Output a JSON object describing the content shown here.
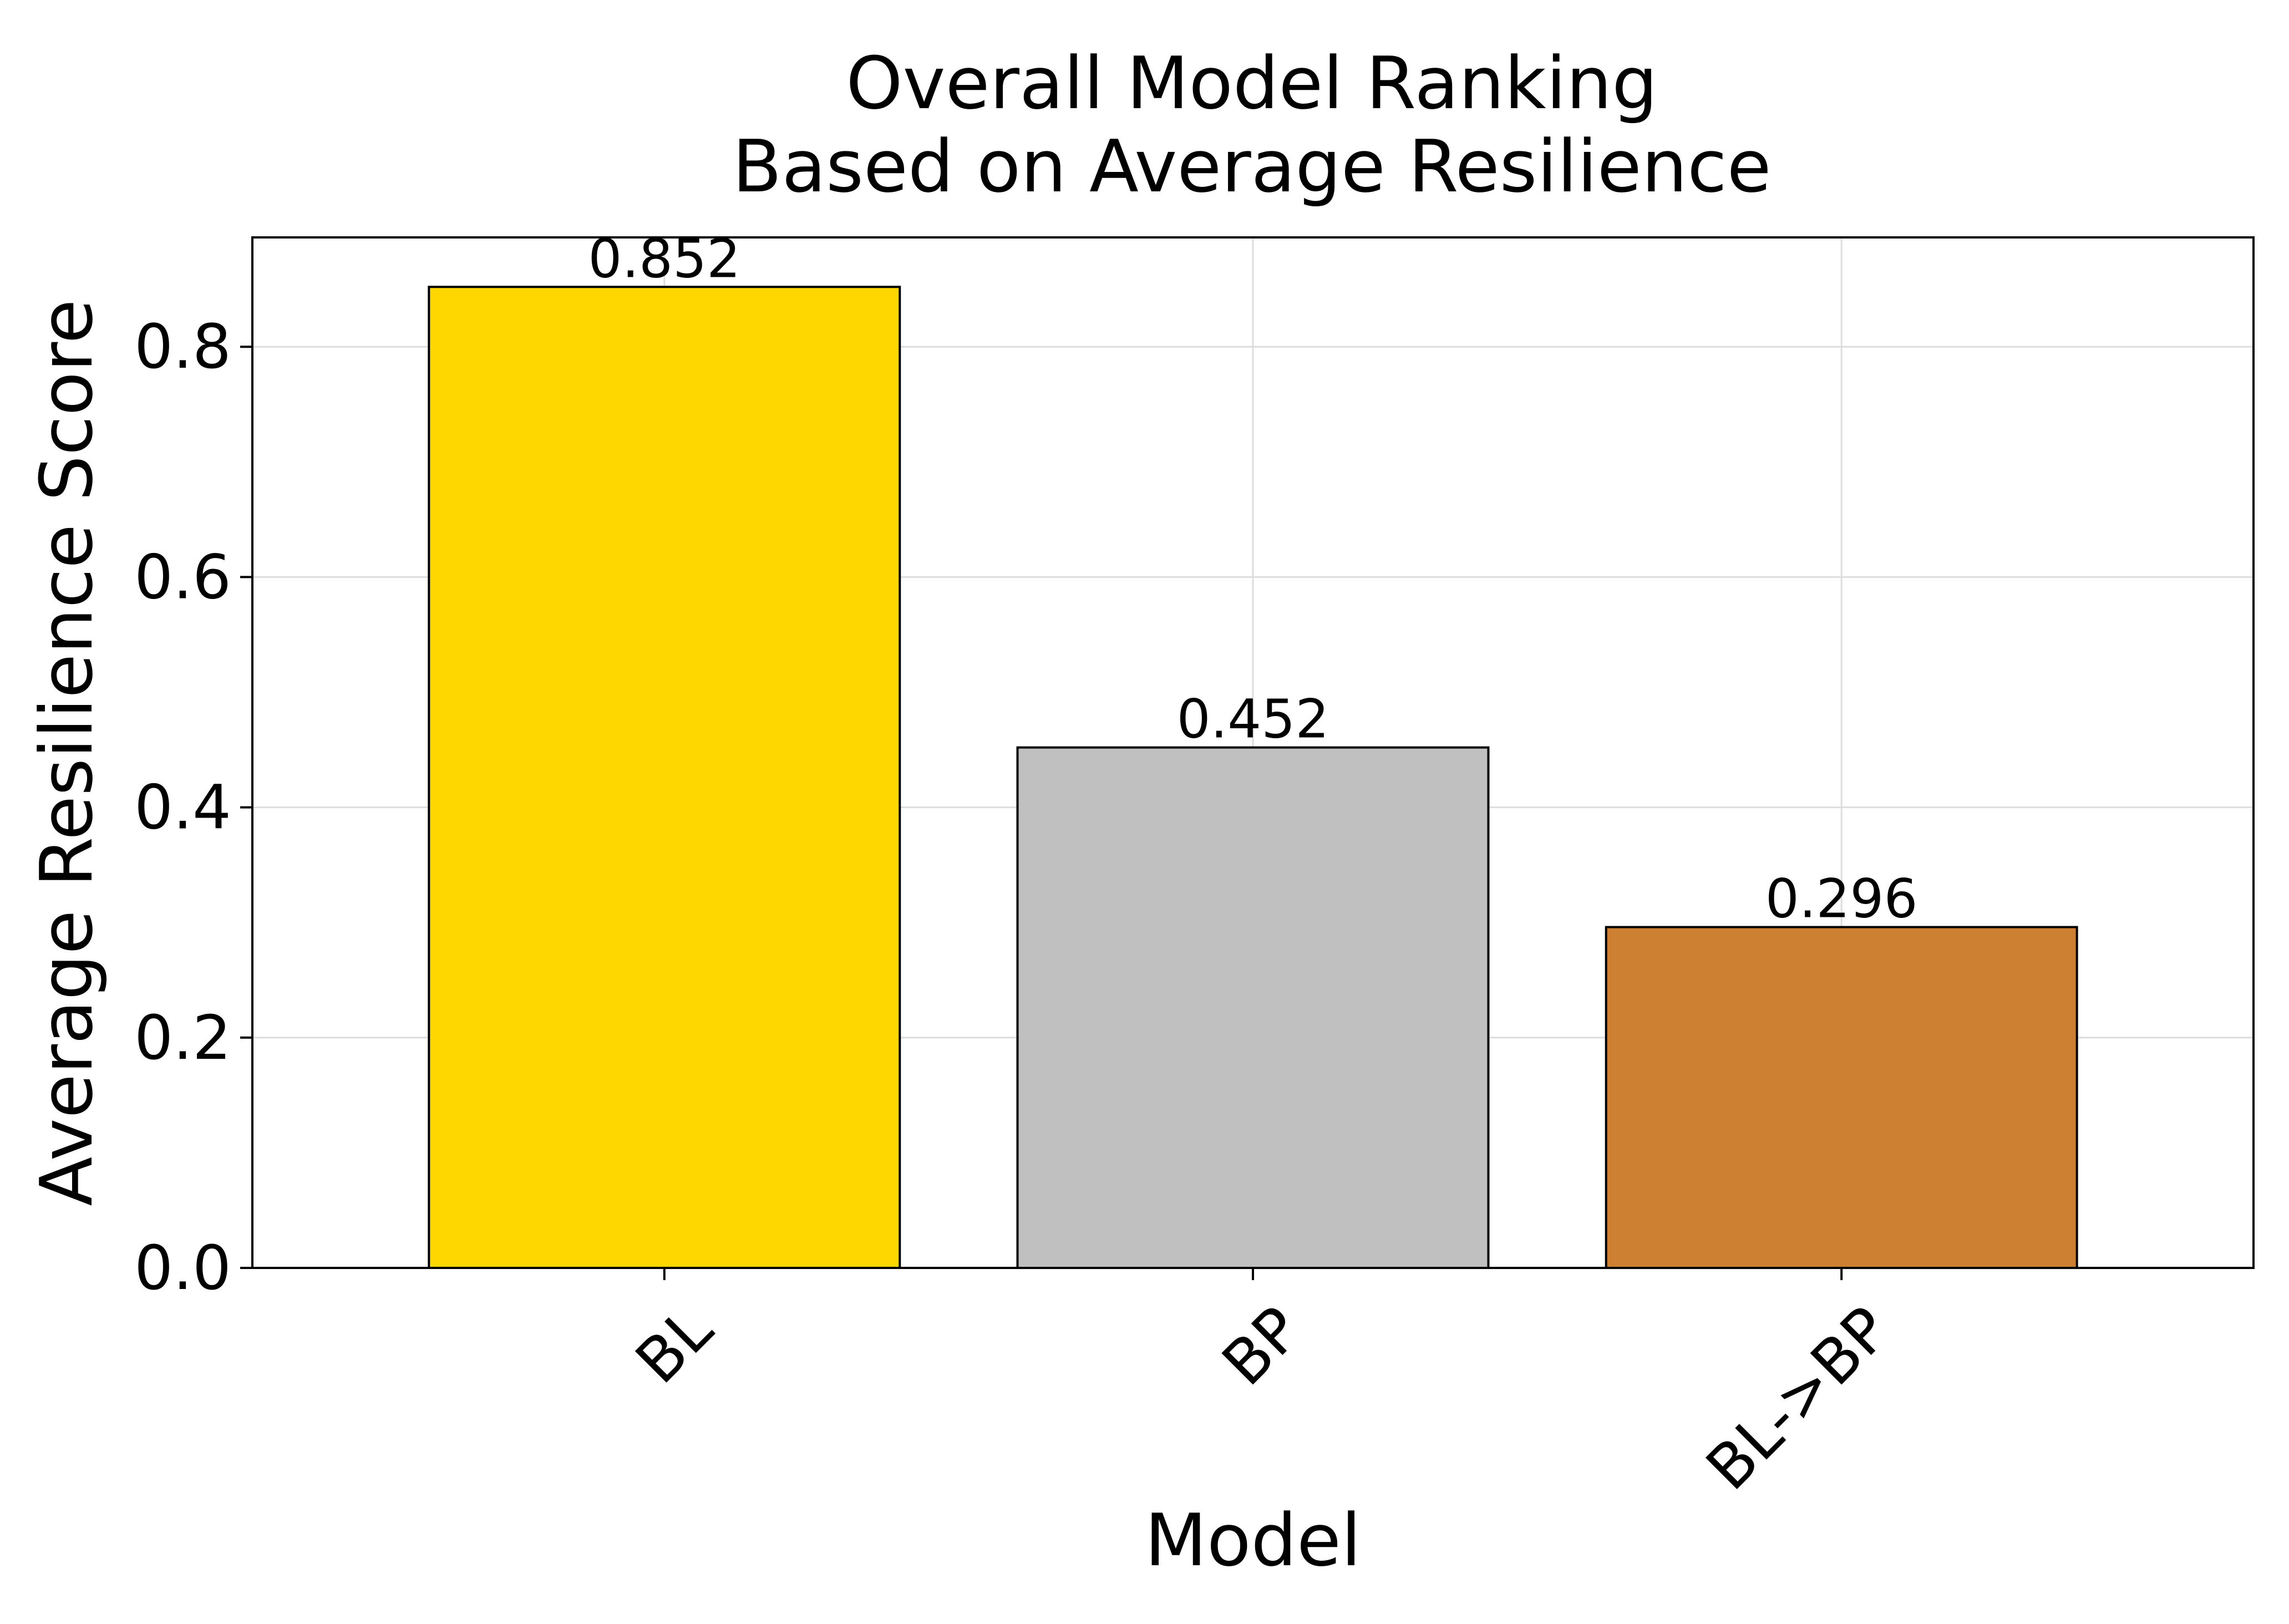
{
  "chart_data": {
    "type": "bar",
    "title_lines": [
      "Overall Model Ranking",
      "Based on Average Resilience"
    ],
    "xlabel": "Model",
    "ylabel": "Average Resilience Score",
    "categories": [
      "BL",
      "BP",
      "BL->BP"
    ],
    "values": [
      0.852,
      0.452,
      0.296
    ],
    "value_labels": [
      "0.852",
      "0.452",
      "0.296"
    ],
    "bar_colors": [
      "#FFD700",
      "#C0C0C0",
      "#CD7F32"
    ],
    "ylim": [
      0,
      0.895
    ],
    "yticks": [
      0.0,
      0.2,
      0.4,
      0.6,
      0.8
    ],
    "ytick_labels": [
      "0.0",
      "0.2",
      "0.4",
      "0.6",
      "0.8"
    ],
    "grid": true,
    "legend": false
  }
}
